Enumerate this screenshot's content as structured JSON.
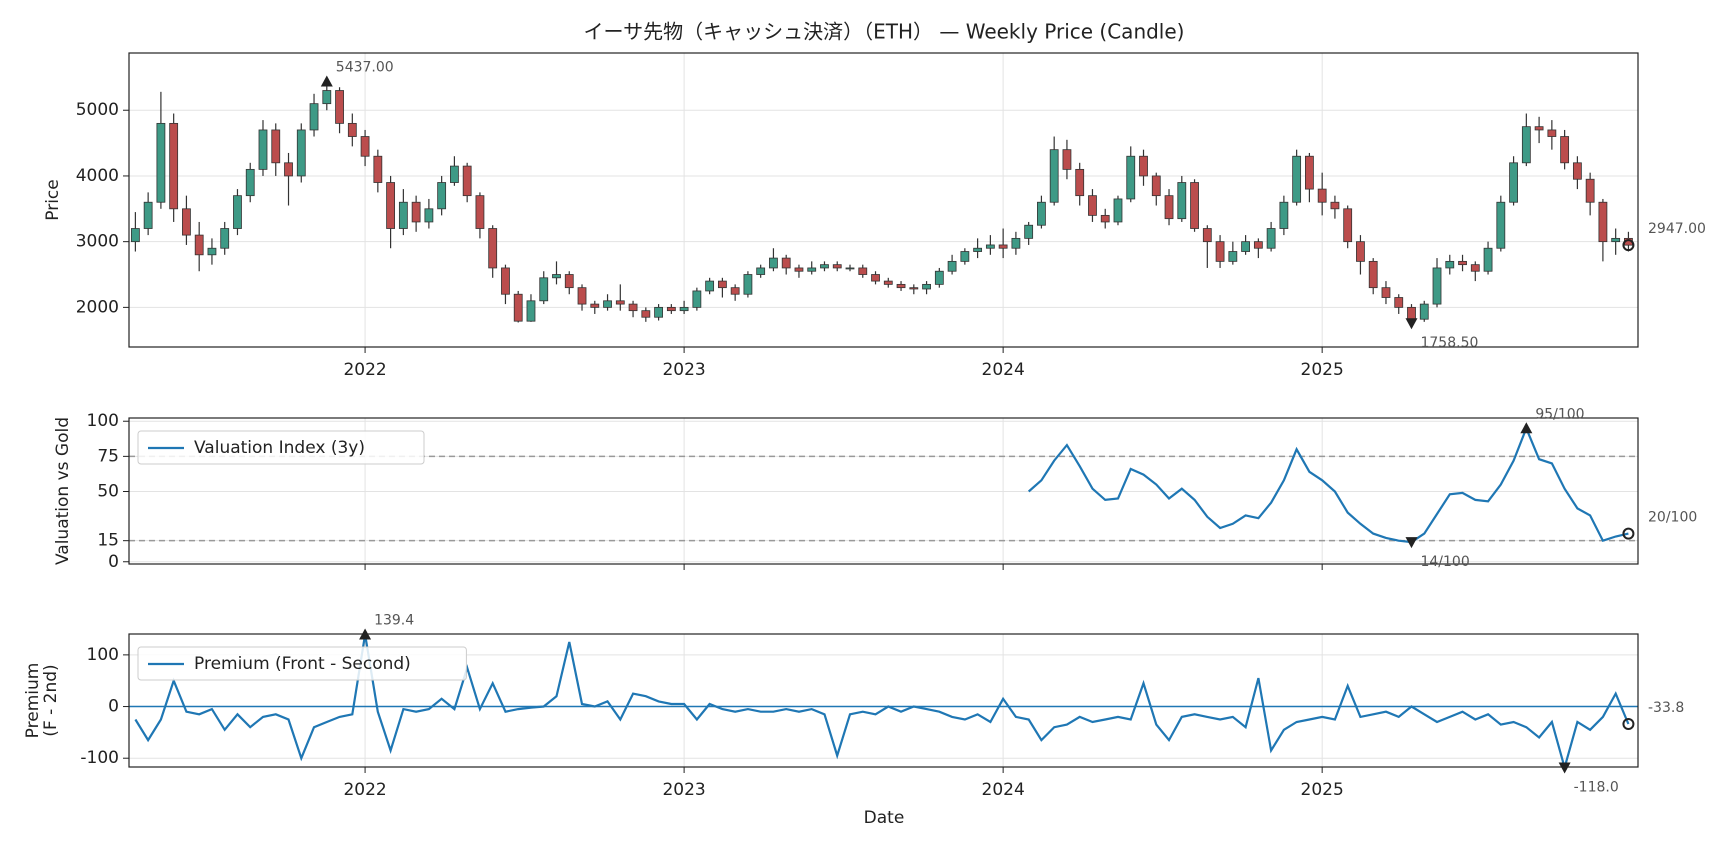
{
  "chart_data": [
    {
      "type": "candlestick",
      "title": "イーサ先物（キャッシュ決済）（ETH） — Weekly Price (Candle)",
      "ylabel": "Price",
      "x": [
        2021.28,
        2021.32,
        2021.36,
        2021.4,
        2021.44,
        2021.48,
        2021.52,
        2021.56,
        2021.6,
        2021.64,
        2021.68,
        2021.72,
        2021.76,
        2021.8,
        2021.84,
        2021.88,
        2021.92,
        2021.96,
        2022.0,
        2022.04,
        2022.08,
        2022.12,
        2022.16,
        2022.2,
        2022.24,
        2022.28,
        2022.32,
        2022.36,
        2022.4,
        2022.44,
        2022.48,
        2022.52,
        2022.56,
        2022.6,
        2022.64,
        2022.68,
        2022.72,
        2022.76,
        2022.8,
        2022.84,
        2022.88,
        2022.92,
        2022.96,
        2023.0,
        2023.04,
        2023.08,
        2023.12,
        2023.16,
        2023.2,
        2023.24,
        2023.28,
        2023.32,
        2023.36,
        2023.4,
        2023.44,
        2023.48,
        2023.52,
        2023.56,
        2023.6,
        2023.64,
        2023.68,
        2023.72,
        2023.76,
        2023.8,
        2023.84,
        2023.88,
        2023.92,
        2023.96,
        2024.0,
        2024.04,
        2024.08,
        2024.12,
        2024.16,
        2024.2,
        2024.24,
        2024.28,
        2024.32,
        2024.36,
        2024.4,
        2024.44,
        2024.48,
        2024.52,
        2024.56,
        2024.6,
        2024.64,
        2024.68,
        2024.72,
        2024.76,
        2024.8,
        2024.84,
        2024.88,
        2024.92,
        2024.96,
        2025.0,
        2025.04,
        2025.08,
        2025.12,
        2025.16,
        2025.2,
        2025.24,
        2025.28,
        2025.32,
        2025.36,
        2025.4,
        2025.44,
        2025.48,
        2025.52,
        2025.56,
        2025.6,
        2025.64,
        2025.68,
        2025.72,
        2025.76,
        2025.8,
        2025.84,
        2025.88,
        2025.92,
        2025.96
      ],
      "open": [
        3000,
        3200,
        3600,
        4800,
        3500,
        3100,
        2800,
        2900,
        3200,
        3700,
        4100,
        4700,
        4200,
        4000,
        4700,
        5100,
        5300,
        4800,
        4600,
        4300,
        3900,
        3200,
        3600,
        3300,
        3500,
        3900,
        4150,
        3700,
        3200,
        2600,
        2200,
        1790,
        2100,
        2450,
        2500,
        2300,
        2050,
        2000,
        2100,
        2050,
        1950,
        1850,
        2000,
        1950,
        2000,
        2250,
        2400,
        2300,
        2200,
        2500,
        2600,
        2750,
        2600,
        2550,
        2600,
        2650,
        2600,
        2600,
        2500,
        2400,
        2350,
        2300,
        2280,
        2350,
        2550,
        2700,
        2850,
        2900,
        2950,
        2900,
        3050,
        3250,
        3600,
        4400,
        4100,
        3700,
        3400,
        3300,
        3650,
        4300,
        4000,
        3700,
        3350,
        3900,
        3200,
        3000,
        2700,
        2850,
        3000,
        2900,
        3200,
        3600,
        4300,
        3800,
        3600,
        3500,
        3000,
        2700,
        2300,
        2150,
        2000,
        1820,
        2050,
        2600,
        2700,
        2650,
        2550,
        2900,
        3600,
        4200,
        4750,
        4700,
        4600,
        4200,
        3950,
        3600,
        3000,
        3050
      ],
      "high": [
        3450,
        3750,
        5280,
        4950,
        3700,
        3300,
        3050,
        3300,
        3800,
        4200,
        4850,
        4800,
        4350,
        4800,
        5250,
        5437,
        5350,
        4950,
        4700,
        4400,
        4000,
        3800,
        3700,
        3650,
        4000,
        4300,
        4200,
        3750,
        3250,
        2650,
        2250,
        2200,
        2550,
        2700,
        2550,
        2350,
        2100,
        2200,
        2350,
        2100,
        2000,
        2050,
        2050,
        2100,
        2300,
        2450,
        2450,
        2350,
        2550,
        2650,
        2900,
        2800,
        2650,
        2700,
        2700,
        2700,
        2650,
        2650,
        2550,
        2450,
        2400,
        2350,
        2400,
        2600,
        2800,
        2900,
        3050,
        3100,
        3200,
        3150,
        3300,
        3700,
        4600,
        4550,
        4200,
        3800,
        3500,
        3700,
        4450,
        4400,
        4050,
        3800,
        4000,
        3950,
        3250,
        3100,
        3000,
        3100,
        3050,
        3300,
        3700,
        4400,
        4350,
        4050,
        3700,
        3550,
        3100,
        2750,
        2400,
        2200,
        2050,
        2100,
        2750,
        2800,
        2800,
        2700,
        3000,
        3700,
        4300,
        4950,
        4900,
        4850,
        4700,
        4300,
        4050,
        3650,
        3200,
        3150
      ],
      "low": [
        2850,
        3100,
        3500,
        3300,
        2950,
        2550,
        2650,
        2800,
        3100,
        3600,
        4000,
        4000,
        3550,
        3900,
        4600,
        5000,
        4650,
        4450,
        4150,
        3750,
        2900,
        3100,
        3150,
        3200,
        3400,
        3850,
        3600,
        3050,
        2450,
        2050,
        1770,
        1780,
        2050,
        2350,
        2200,
        1950,
        1900,
        1950,
        1950,
        1850,
        1780,
        1800,
        1900,
        1900,
        1950,
        2200,
        2150,
        2100,
        2150,
        2450,
        2550,
        2500,
        2450,
        2500,
        2550,
        2550,
        2550,
        2450,
        2350,
        2300,
        2250,
        2200,
        2200,
        2300,
        2500,
        2650,
        2750,
        2800,
        2750,
        2800,
        2950,
        3200,
        3550,
        3950,
        3550,
        3300,
        3200,
        3250,
        3600,
        3850,
        3550,
        3250,
        3300,
        3150,
        2600,
        2600,
        2650,
        2800,
        2750,
        2850,
        3100,
        3550,
        3600,
        3400,
        3350,
        2900,
        2500,
        2200,
        2050,
        1900,
        1758.5,
        1780,
        2000,
        2500,
        2550,
        2400,
        2500,
        2850,
        3550,
        4150,
        4500,
        4400,
        4100,
        3800,
        3400,
        2700,
        2800,
        2850
      ],
      "close": [
        3200,
        3600,
        4800,
        3500,
        3100,
        2800,
        2900,
        3200,
        3700,
        4100,
        4700,
        4200,
        4000,
        4700,
        5100,
        5300,
        4800,
        4600,
        4300,
        3900,
        3200,
        3600,
        3300,
        3500,
        3900,
        4150,
        3700,
        3200,
        2600,
        2200,
        1790,
        2100,
        2450,
        2500,
        2300,
        2050,
        2000,
        2100,
        2050,
        1950,
        1850,
        2000,
        1950,
        2000,
        2250,
        2400,
        2300,
        2200,
        2500,
        2600,
        2750,
        2600,
        2550,
        2600,
        2650,
        2600,
        2600,
        2500,
        2400,
        2350,
        2300,
        2280,
        2350,
        2550,
        2700,
        2850,
        2900,
        2950,
        2900,
        3050,
        3250,
        3600,
        4400,
        4100,
        3700,
        3400,
        3300,
        3650,
        4300,
        4000,
        3700,
        3350,
        3900,
        3200,
        3000,
        2700,
        2850,
        3000,
        2900,
        3200,
        3600,
        4300,
        3800,
        3600,
        3500,
        3000,
        2700,
        2300,
        2150,
        2000,
        1820,
        2050,
        2600,
        2700,
        2650,
        2550,
        2900,
        3600,
        4200,
        4750,
        4700,
        4600,
        4200,
        3950,
        3600,
        3000,
        3050,
        2947
      ],
      "up_color": "#3e9a86",
      "down_color": "#bb4d4d",
      "xlim": [
        2021.26,
        2025.99
      ],
      "xticks": [
        2022,
        2023,
        2024,
        2025
      ],
      "ylim": [
        1397,
        5871
      ],
      "yticks": [
        2000,
        3000,
        4000,
        5000
      ],
      "grid": true,
      "annotations": [
        {
          "x": 2021.88,
          "value": 5437,
          "label": "5437.00",
          "kind": "max"
        },
        {
          "x": 2025.28,
          "value": 1758.5,
          "label": "1758.50",
          "kind": "min"
        },
        {
          "x": 2025.96,
          "value": 2947,
          "label": "2947.00",
          "kind": "last"
        }
      ]
    },
    {
      "type": "line",
      "ylabel": "Valuation vs Gold",
      "x": [
        2024.08,
        2024.12,
        2024.16,
        2024.2,
        2024.24,
        2024.28,
        2024.32,
        2024.36,
        2024.4,
        2024.44,
        2024.48,
        2024.52,
        2024.56,
        2024.6,
        2024.64,
        2024.68,
        2024.72,
        2024.76,
        2024.8,
        2024.84,
        2024.88,
        2024.92,
        2024.96,
        2025.0,
        2025.04,
        2025.08,
        2025.12,
        2025.16,
        2025.2,
        2025.24,
        2025.28,
        2025.32,
        2025.36,
        2025.4,
        2025.44,
        2025.48,
        2025.52,
        2025.56,
        2025.6,
        2025.64,
        2025.68,
        2025.72,
        2025.76,
        2025.8,
        2025.84,
        2025.88,
        2025.92,
        2025.96
      ],
      "series": [
        {
          "name": "Valuation Index (3y)",
          "color": "#1f77b4",
          "values": [
            50,
            58,
            72,
            83,
            68,
            52,
            44,
            45,
            66,
            62,
            55,
            45,
            52,
            44,
            32,
            24,
            27,
            33,
            31,
            42,
            58,
            80,
            64,
            58,
            50,
            35,
            27,
            20,
            17,
            15,
            14,
            20,
            34,
            48,
            49,
            44,
            43,
            55,
            72,
            95,
            73,
            70,
            52,
            38,
            33,
            15,
            18,
            20
          ]
        }
      ],
      "hlines": [
        75,
        15
      ],
      "hline_color": "#999999",
      "hline_dashed": true,
      "xlim": [
        2021.26,
        2025.99
      ],
      "xticks": [
        2022,
        2023,
        2024,
        2025
      ],
      "xtick_labels": false,
      "ylim": [
        -1.6,
        102.3
      ],
      "yticks": [
        0,
        15,
        50,
        75,
        100
      ],
      "grid": true,
      "legend": "upper left",
      "annotations": [
        {
          "x": 2025.64,
          "value": 95,
          "label": "95/100",
          "kind": "max"
        },
        {
          "x": 2025.28,
          "value": 14,
          "label": "14/100",
          "kind": "min"
        },
        {
          "x": 2025.96,
          "value": 20,
          "label": "20/100",
          "kind": "last"
        }
      ]
    },
    {
      "type": "line",
      "ylabel": [
        "Premium",
        "(F - 2nd)"
      ],
      "xlabel": "Date",
      "x": [
        2021.28,
        2021.32,
        2021.36,
        2021.4,
        2021.44,
        2021.48,
        2021.52,
        2021.56,
        2021.6,
        2021.64,
        2021.68,
        2021.72,
        2021.76,
        2021.8,
        2021.84,
        2021.88,
        2021.92,
        2021.96,
        2022.0,
        2022.04,
        2022.08,
        2022.12,
        2022.16,
        2022.2,
        2022.24,
        2022.28,
        2022.32,
        2022.36,
        2022.4,
        2022.44,
        2022.48,
        2022.52,
        2022.56,
        2022.6,
        2022.64,
        2022.68,
        2022.72,
        2022.76,
        2022.8,
        2022.84,
        2022.88,
        2022.92,
        2022.96,
        2023.0,
        2023.04,
        2023.08,
        2023.12,
        2023.16,
        2023.2,
        2023.24,
        2023.28,
        2023.32,
        2023.36,
        2023.4,
        2023.44,
        2023.48,
        2023.52,
        2023.56,
        2023.6,
        2023.64,
        2023.68,
        2023.72,
        2023.76,
        2023.8,
        2023.84,
        2023.88,
        2023.92,
        2023.96,
        2024.0,
        2024.04,
        2024.08,
        2024.12,
        2024.16,
        2024.2,
        2024.24,
        2024.28,
        2024.32,
        2024.36,
        2024.4,
        2024.44,
        2024.48,
        2024.52,
        2024.56,
        2024.6,
        2024.64,
        2024.68,
        2024.72,
        2024.76,
        2024.8,
        2024.84,
        2024.88,
        2024.92,
        2024.96,
        2025.0,
        2025.04,
        2025.08,
        2025.12,
        2025.16,
        2025.2,
        2025.24,
        2025.28,
        2025.32,
        2025.36,
        2025.4,
        2025.44,
        2025.48,
        2025.52,
        2025.56,
        2025.6,
        2025.64,
        2025.68,
        2025.72,
        2025.76,
        2025.8,
        2025.84,
        2025.88,
        2025.92,
        2025.96
      ],
      "series": [
        {
          "name": "Premium (Front - Second)",
          "color": "#1f77b4",
          "values": [
            -25,
            -65,
            -25,
            50,
            -10,
            -15,
            -5,
            -45,
            -15,
            -40,
            -20,
            -15,
            -25,
            -100,
            -40,
            -30,
            -20,
            -15,
            139.4,
            -10,
            -85,
            -5,
            -10,
            -5,
            15,
            -5,
            75,
            -5,
            45,
            -10,
            -5,
            -2,
            0,
            20,
            125,
            5,
            0,
            10,
            -25,
            25,
            20,
            10,
            5,
            5,
            -25,
            5,
            -5,
            -10,
            -5,
            -10,
            -10,
            -5,
            -10,
            -5,
            -15,
            -95,
            -15,
            -10,
            -15,
            0,
            -10,
            0,
            -5,
            -10,
            -20,
            -25,
            -15,
            -30,
            15,
            -20,
            -25,
            -65,
            -40,
            -35,
            -20,
            -30,
            -25,
            -20,
            -25,
            45,
            -35,
            -65,
            -20,
            -15,
            -20,
            -25,
            -20,
            -40,
            55,
            -85,
            -45,
            -30,
            -25,
            -20,
            -25,
            40,
            -20,
            -15,
            -10,
            -20,
            0,
            -15,
            -30,
            -20,
            -10,
            -25,
            -15,
            -35,
            -30,
            -40,
            -60,
            -30,
            -118,
            -30,
            -45,
            -20,
            25,
            -33.8
          ]
        }
      ],
      "hlines": [
        0
      ],
      "hline_color": "#1f77b4",
      "hline_dashed": false,
      "xlim": [
        2021.26,
        2025.99
      ],
      "xticks": [
        2022,
        2023,
        2024,
        2025
      ],
      "ylim": [
        -117,
        140.4
      ],
      "yticks": [
        -100,
        0,
        100
      ],
      "grid": true,
      "legend": "upper left",
      "annotations": [
        {
          "x": 2022.0,
          "value": 139.4,
          "label": "139.4",
          "kind": "max"
        },
        {
          "x": 2025.76,
          "value": -118,
          "label": "-118.0",
          "kind": "min"
        },
        {
          "x": 2025.96,
          "value": -33.8,
          "label": "-33.8",
          "kind": "last"
        }
      ]
    }
  ]
}
